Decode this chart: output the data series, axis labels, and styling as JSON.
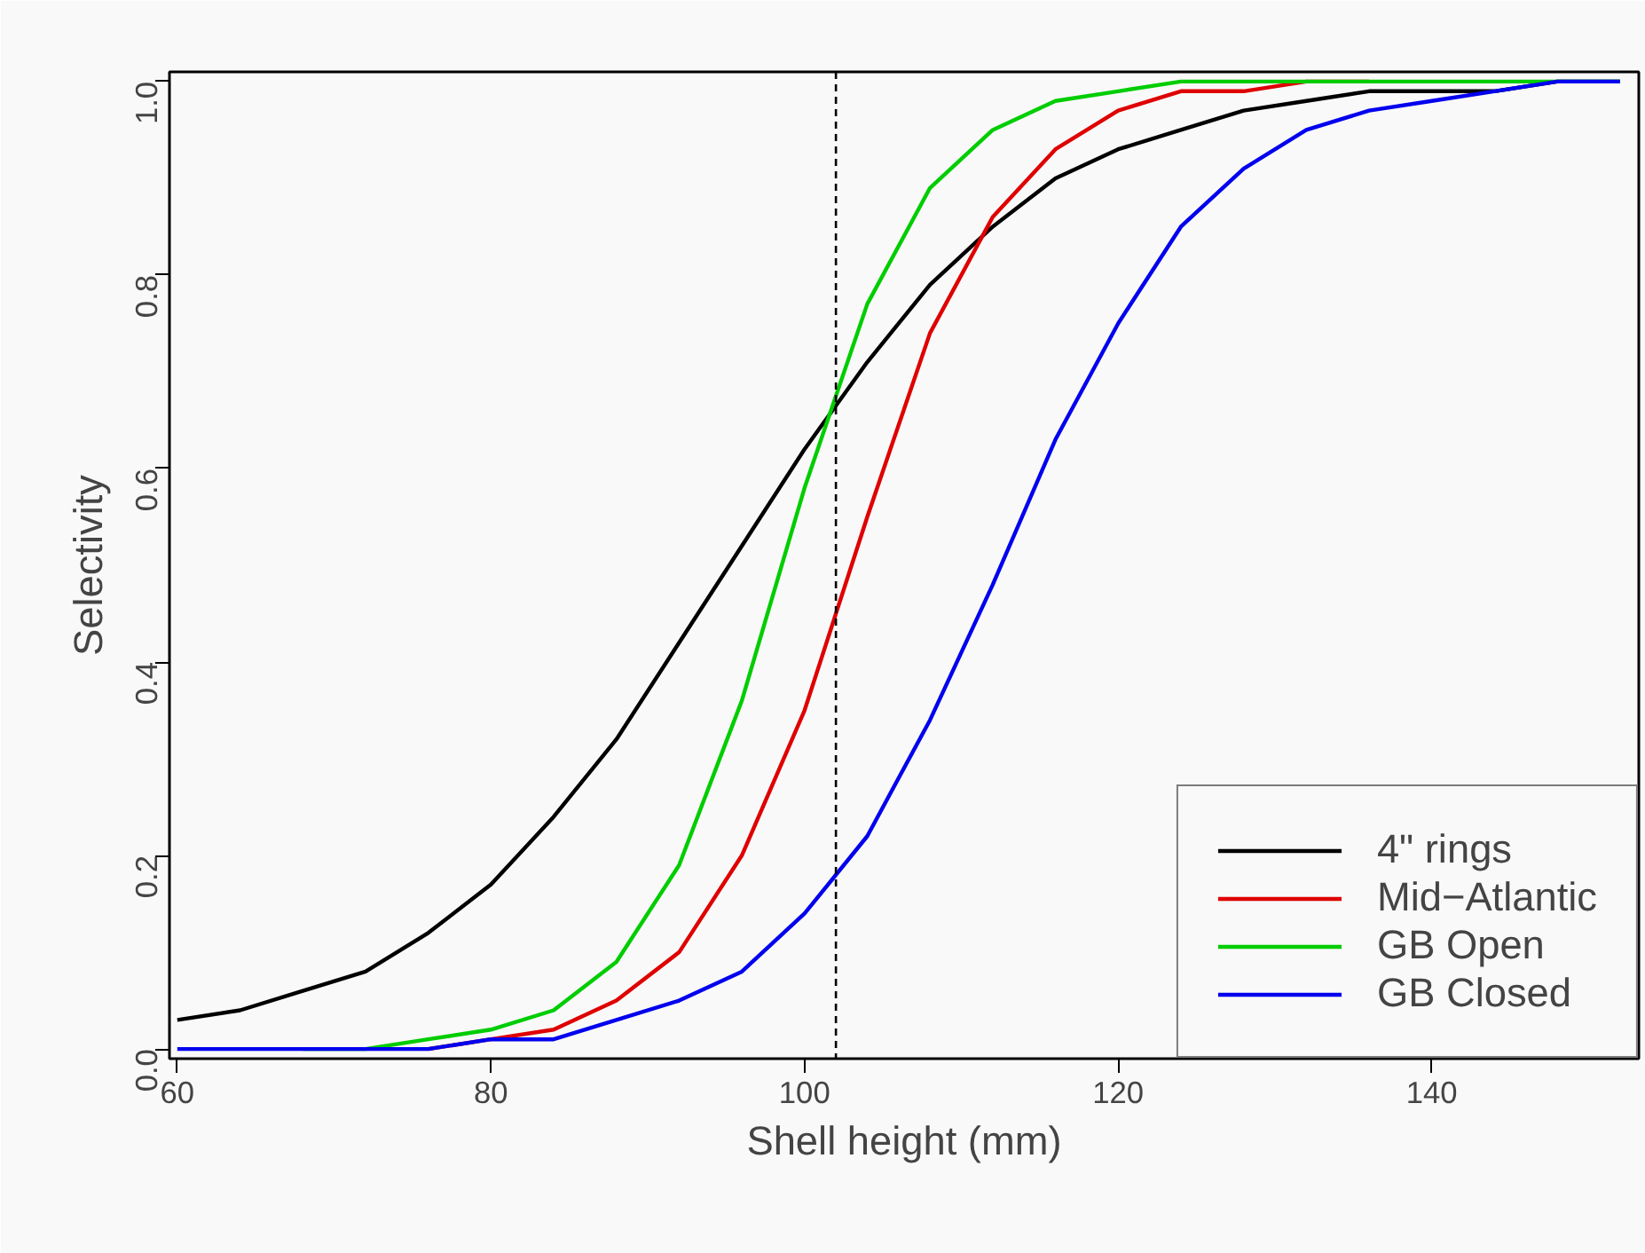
{
  "chart_data": {
    "type": "line",
    "xlabel": "Shell height (mm)",
    "ylabel": "Selectivity",
    "x": [
      60,
      64,
      68,
      72,
      76,
      80,
      84,
      88,
      92,
      96,
      100,
      104,
      108,
      112,
      116,
      120,
      124,
      128,
      132,
      136,
      140,
      144,
      148,
      152
    ],
    "series": [
      {
        "name": "4\" rings",
        "color": "#000000",
        "values": [
          0.03,
          0.04,
          0.06,
          0.08,
          0.12,
          0.17,
          0.24,
          0.32,
          0.42,
          0.52,
          0.62,
          0.71,
          0.79,
          0.85,
          0.9,
          0.93,
          0.95,
          0.97,
          0.98,
          0.99,
          0.99,
          0.99,
          1.0,
          1.0
        ]
      },
      {
        "name": "Mid−Atlantic",
        "color": "#df0000",
        "values": [
          null,
          null,
          null,
          null,
          0.0,
          0.01,
          0.02,
          0.05,
          0.1,
          0.2,
          0.35,
          0.55,
          0.74,
          0.86,
          0.93,
          0.97,
          0.99,
          0.99,
          1.0,
          1.0,
          null,
          null,
          null,
          null
        ]
      },
      {
        "name": "GB Open",
        "color": "#00cd00",
        "values": [
          null,
          null,
          0.0,
          0.0,
          0.01,
          0.02,
          0.04,
          0.09,
          0.19,
          0.36,
          0.58,
          0.77,
          0.89,
          0.95,
          0.98,
          0.99,
          1.0,
          1.0,
          1.0,
          1.0,
          1.0,
          1.0,
          1.0,
          1.0
        ]
      },
      {
        "name": "GB Closed",
        "color": "#0000ee",
        "values": [
          0.0,
          0.0,
          0.0,
          0.0,
          0.0,
          0.01,
          0.01,
          0.03,
          0.05,
          0.08,
          0.14,
          0.22,
          0.34,
          0.48,
          0.63,
          0.75,
          0.85,
          0.91,
          0.95,
          0.97,
          0.98,
          0.99,
          1.0,
          1.0
        ]
      }
    ],
    "xlim": [
      59.5,
      153.2
    ],
    "ylim": [
      -0.01,
      1.01
    ],
    "xticks": [
      60,
      80,
      100,
      120,
      140
    ],
    "yticks": [
      {
        "value": 0,
        "label": "0.0"
      },
      {
        "value": 0.2,
        "label": "0.2"
      },
      {
        "value": 0.4,
        "label": "0.4"
      },
      {
        "value": 0.6,
        "label": "0.6"
      },
      {
        "value": 0.8,
        "label": "0.8"
      },
      {
        "value": 1,
        "label": "1.0"
      }
    ],
    "ref_lines": [
      {
        "axis": "x",
        "value": 102,
        "color": "#000000",
        "line_style": "dashed"
      }
    ],
    "legend": "bottom right",
    "grid": false,
    "line_style": "solid",
    "marker": "none"
  }
}
